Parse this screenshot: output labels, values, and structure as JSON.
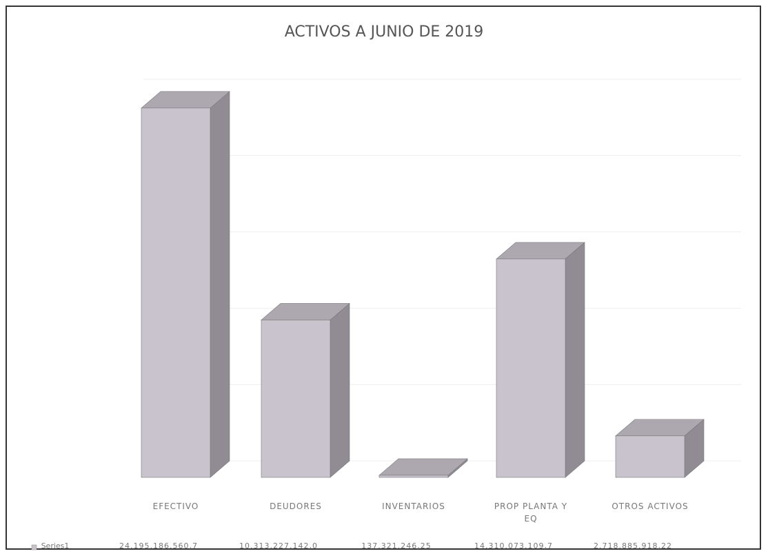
{
  "chart_data": {
    "type": "bar3d",
    "title": "ACTIVOS A JUNIO DE 2019",
    "categories": [
      "EFECTIVO",
      "DEUDORES",
      "INVENTARIOS",
      "PROP PLANTA Y EQ",
      "OTROS ACTIVOS"
    ],
    "series": [
      {
        "name": "Series1",
        "color": "#c9c3cd",
        "values": [
          24195186560.7,
          10313227142.0,
          137321246.25,
          14310073109.7,
          2718885918.22
        ],
        "value_labels": [
          "24.195.186.560,7",
          "10.313.227.142,0",
          "137.321.246,25",
          "14.310.073.109,7",
          "2.718.885.918,22"
        ]
      }
    ],
    "ylim": [
      0,
      25000000000
    ],
    "yticks": [
      0,
      5000000000,
      10000000000,
      15000000000,
      20000000000,
      25000000000
    ],
    "grid": true
  }
}
